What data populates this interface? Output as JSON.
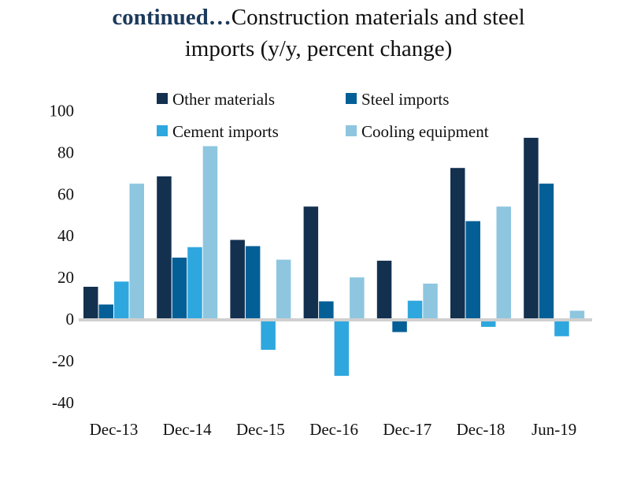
{
  "chart_data": {
    "type": "bar",
    "title_lead": "continued…",
    "title_line1": "Construction materials and steel",
    "title_line2": "imports (y/y, percent change)",
    "xlabel": "",
    "ylabel": "",
    "ylim": [
      -40,
      100
    ],
    "yticks": [
      100,
      80,
      60,
      40,
      20,
      0,
      -20,
      -40
    ],
    "grid": false,
    "legend_position": "top",
    "categories": [
      "Dec-13",
      "Dec-14",
      "Dec-15",
      "Dec-16",
      "Dec-17",
      "Dec-18",
      "Jun-19"
    ],
    "series": [
      {
        "name": "Other materials",
        "color": "#13304f",
        "values": [
          15.5,
          68.5,
          38,
          54,
          28,
          72.5,
          87
        ]
      },
      {
        "name": "Steel imports",
        "color": "#045f96",
        "values": [
          7,
          29.5,
          35,
          8.5,
          -5.5,
          47,
          65
        ]
      },
      {
        "name": "Cement imports",
        "color": "#2ea7df",
        "values": [
          18,
          34.5,
          -14,
          -26.5,
          8.8,
          -3,
          -7.5
        ]
      },
      {
        "name": "Cooling equipment",
        "color": "#8ec6df",
        "values": [
          65,
          83,
          28.5,
          20,
          17,
          54,
          4
        ]
      }
    ],
    "axis_color": "#d0d0d0"
  }
}
